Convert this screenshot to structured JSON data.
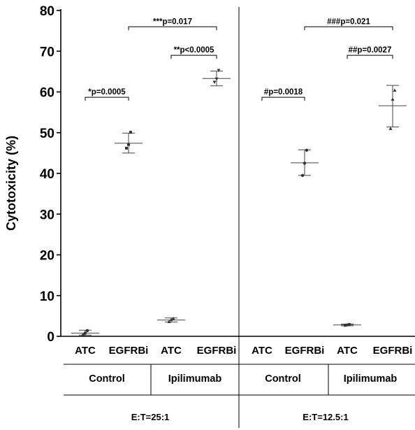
{
  "chart_data": {
    "type": "scatter",
    "ylabel": "Cytotoxicity (%)",
    "ylim": [
      0,
      80
    ],
    "yticks": [
      "0",
      "10",
      "20",
      "30",
      "40",
      "50",
      "60",
      "70",
      "80"
    ],
    "grid": false,
    "categories": [
      "ATC",
      "EGFRBi",
      "ATC",
      "EGFRBi",
      "ATC",
      "EGFRBi",
      "ATC",
      "EGFRBi"
    ],
    "treatment_groups": [
      "Control",
      "Ipilimumab",
      "Control",
      "Ipilimumab"
    ],
    "ratio_groups": [
      "E:T=25:1",
      "E:T=12.5:1"
    ],
    "series": [
      {
        "points": [
          0.3,
          0.8,
          1.4
        ],
        "mean": 0.8,
        "sd": [
          0.3,
          1.5
        ],
        "marker": "circle"
      },
      {
        "points": [
          46.2,
          47.1,
          50.1
        ],
        "mean": 47.4,
        "sd": [
          45.0,
          49.9
        ],
        "marker": "square"
      },
      {
        "points": [
          3.6,
          4.1,
          4.4
        ],
        "mean": 4.0,
        "sd": [
          3.5,
          4.5
        ],
        "marker": "triangle"
      },
      {
        "points": [
          62.4,
          63.2,
          65.3
        ],
        "mean": 63.3,
        "sd": [
          61.5,
          65.1
        ],
        "marker": "triangle-down"
      },
      {
        "points": [],
        "mean": null,
        "sd": null,
        "marker": "circle"
      },
      {
        "points": [
          39.5,
          42.5,
          45.7
        ],
        "mean": 42.6,
        "sd": [
          39.5,
          45.8
        ],
        "marker": "circle"
      },
      {
        "points": [
          2.7,
          2.8,
          2.9
        ],
        "mean": 2.8,
        "sd": [
          2.6,
          3.0
        ],
        "marker": "square"
      },
      {
        "points": [
          51.0,
          58.2,
          60.4
        ],
        "mean": 56.6,
        "sd": [
          51.4,
          61.6
        ],
        "marker": "triangle"
      }
    ],
    "comparisons": [
      {
        "from": 0,
        "to": 1,
        "y": 58.7,
        "label": "*p=0.0005"
      },
      {
        "from": 1,
        "to": 3,
        "y": 76.0,
        "label": "***p=0.017"
      },
      {
        "from": 2,
        "to": 3,
        "y": 69.0,
        "label": "**p<0.0005"
      },
      {
        "from": 4,
        "to": 5,
        "y": 58.7,
        "label": "#p=0.0018"
      },
      {
        "from": 5,
        "to": 7,
        "y": 76.0,
        "label": "###p=0.021"
      },
      {
        "from": 6,
        "to": 7,
        "y": 69.0,
        "label": "##p=0.0027"
      }
    ]
  }
}
